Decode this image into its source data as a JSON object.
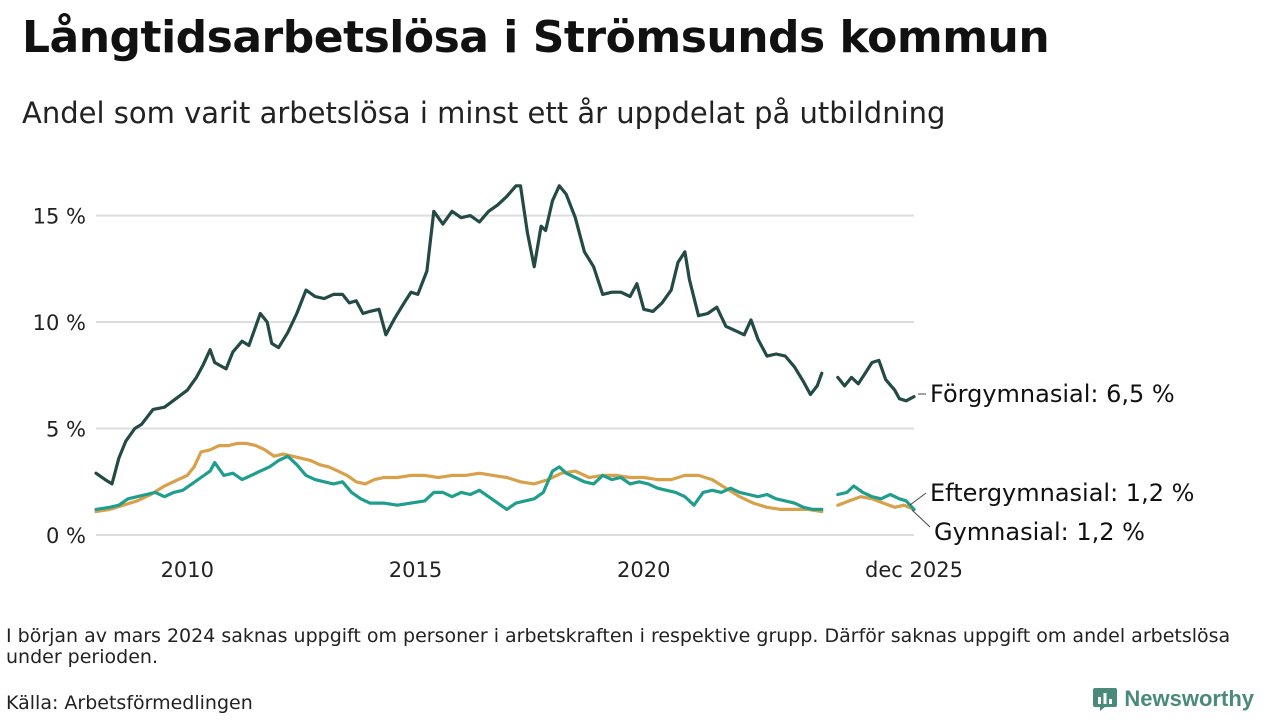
{
  "title": "Långtidsarbetslösa i Strömsunds kommun",
  "subtitle": "Andel som varit arbetslösa i minst ett år uppdelat på utbildning",
  "note": "I början av mars 2024 saknas uppgift om personer i arbetskraften i respektive grupp. Därför saknas uppgift om andel arbetslösa under perioden.",
  "source": "Källa: Arbetsförmedlingen",
  "brand": "Newsworthy",
  "colors": {
    "forgymnasial": "#234a44",
    "eftergymnasial": "#d9a04a",
    "gymnasial": "#1f9e8e",
    "grid": "#dddddd",
    "brand": "#4a8a7a"
  },
  "chart_data": {
    "type": "line",
    "title": "Långtidsarbetslösa i Strömsunds kommun",
    "xlabel": "",
    "ylabel": "",
    "ylim": [
      0,
      17
    ],
    "xlim": [
      2008.0,
      2025.92
    ],
    "y_ticks": [
      {
        "value": 0,
        "label": "0 %"
      },
      {
        "value": 5,
        "label": "5 %"
      },
      {
        "value": 10,
        "label": "10 %"
      },
      {
        "value": 15,
        "label": "15 %"
      }
    ],
    "x_ticks": [
      {
        "value": 2010,
        "label": "2010"
      },
      {
        "value": 2015,
        "label": "2015"
      },
      {
        "value": 2020,
        "label": "2020"
      },
      {
        "value": 2025.92,
        "label": "dec 2025"
      }
    ],
    "grid": true,
    "gap": [
      2023.9,
      2024.25
    ],
    "series": [
      {
        "name": "Förgymnasial",
        "label": "Förgymnasial: 6,5 %",
        "color_key": "forgymnasial",
        "points": [
          [
            2008.0,
            2.9
          ],
          [
            2008.2,
            2.6
          ],
          [
            2008.35,
            2.4
          ],
          [
            2008.5,
            3.6
          ],
          [
            2008.65,
            4.4
          ],
          [
            2008.85,
            5.0
          ],
          [
            2009.0,
            5.2
          ],
          [
            2009.25,
            5.9
          ],
          [
            2009.5,
            6.0
          ],
          [
            2009.75,
            6.4
          ],
          [
            2010.0,
            6.8
          ],
          [
            2010.2,
            7.4
          ],
          [
            2010.35,
            8.0
          ],
          [
            2010.5,
            8.7
          ],
          [
            2010.6,
            8.1
          ],
          [
            2010.85,
            7.8
          ],
          [
            2011.0,
            8.6
          ],
          [
            2011.2,
            9.1
          ],
          [
            2011.35,
            8.9
          ],
          [
            2011.6,
            10.4
          ],
          [
            2011.75,
            10.0
          ],
          [
            2011.85,
            9.0
          ],
          [
            2012.0,
            8.8
          ],
          [
            2012.2,
            9.5
          ],
          [
            2012.4,
            10.4
          ],
          [
            2012.6,
            11.5
          ],
          [
            2012.8,
            11.2
          ],
          [
            2013.0,
            11.1
          ],
          [
            2013.2,
            11.3
          ],
          [
            2013.4,
            11.3
          ],
          [
            2013.55,
            10.9
          ],
          [
            2013.7,
            11.0
          ],
          [
            2013.85,
            10.4
          ],
          [
            2014.0,
            10.5
          ],
          [
            2014.2,
            10.6
          ],
          [
            2014.35,
            9.4
          ],
          [
            2014.55,
            10.2
          ],
          [
            2014.75,
            10.9
          ],
          [
            2014.9,
            11.4
          ],
          [
            2015.05,
            11.3
          ],
          [
            2015.25,
            12.4
          ],
          [
            2015.4,
            15.2
          ],
          [
            2015.6,
            14.6
          ],
          [
            2015.8,
            15.2
          ],
          [
            2016.0,
            14.9
          ],
          [
            2016.2,
            15.0
          ],
          [
            2016.4,
            14.7
          ],
          [
            2016.6,
            15.2
          ],
          [
            2016.8,
            15.5
          ],
          [
            2017.0,
            15.9
          ],
          [
            2017.2,
            16.4
          ],
          [
            2017.3,
            16.4
          ],
          [
            2017.45,
            14.2
          ],
          [
            2017.6,
            12.6
          ],
          [
            2017.75,
            14.5
          ],
          [
            2017.85,
            14.3
          ],
          [
            2018.0,
            15.7
          ],
          [
            2018.15,
            16.4
          ],
          [
            2018.3,
            16.0
          ],
          [
            2018.5,
            14.9
          ],
          [
            2018.7,
            13.3
          ],
          [
            2018.9,
            12.6
          ],
          [
            2019.1,
            11.3
          ],
          [
            2019.3,
            11.4
          ],
          [
            2019.5,
            11.4
          ],
          [
            2019.7,
            11.2
          ],
          [
            2019.85,
            11.8
          ],
          [
            2020.0,
            10.6
          ],
          [
            2020.2,
            10.5
          ],
          [
            2020.4,
            10.9
          ],
          [
            2020.6,
            11.5
          ],
          [
            2020.75,
            12.8
          ],
          [
            2020.9,
            13.3
          ],
          [
            2021.0,
            12.0
          ],
          [
            2021.2,
            10.3
          ],
          [
            2021.4,
            10.4
          ],
          [
            2021.6,
            10.7
          ],
          [
            2021.8,
            9.8
          ],
          [
            2022.0,
            9.6
          ],
          [
            2022.2,
            9.4
          ],
          [
            2022.35,
            10.1
          ],
          [
            2022.5,
            9.2
          ],
          [
            2022.7,
            8.4
          ],
          [
            2022.9,
            8.5
          ],
          [
            2023.1,
            8.4
          ],
          [
            2023.3,
            7.9
          ],
          [
            2023.5,
            7.2
          ],
          [
            2023.65,
            6.6
          ],
          [
            2023.8,
            7.0
          ],
          [
            2023.9,
            7.6
          ],
          [
            2024.25,
            7.4
          ],
          [
            2024.4,
            7.0
          ],
          [
            2024.55,
            7.4
          ],
          [
            2024.7,
            7.1
          ],
          [
            2024.85,
            7.6
          ],
          [
            2025.0,
            8.1
          ],
          [
            2025.15,
            8.2
          ],
          [
            2025.3,
            7.3
          ],
          [
            2025.5,
            6.8
          ],
          [
            2025.6,
            6.4
          ],
          [
            2025.75,
            6.3
          ],
          [
            2025.92,
            6.5
          ]
        ]
      },
      {
        "name": "Eftergymnasial",
        "label": "Eftergymnasial: 1,2 %",
        "color_key": "eftergymnasial",
        "points": [
          [
            2008.0,
            1.1
          ],
          [
            2008.3,
            1.2
          ],
          [
            2008.6,
            1.4
          ],
          [
            2008.9,
            1.6
          ],
          [
            2009.2,
            1.9
          ],
          [
            2009.5,
            2.3
          ],
          [
            2009.8,
            2.6
          ],
          [
            2010.0,
            2.8
          ],
          [
            2010.15,
            3.2
          ],
          [
            2010.3,
            3.9
          ],
          [
            2010.5,
            4.0
          ],
          [
            2010.7,
            4.2
          ],
          [
            2010.9,
            4.2
          ],
          [
            2011.1,
            4.3
          ],
          [
            2011.3,
            4.3
          ],
          [
            2011.5,
            4.2
          ],
          [
            2011.7,
            4.0
          ],
          [
            2011.9,
            3.7
          ],
          [
            2012.1,
            3.8
          ],
          [
            2012.3,
            3.7
          ],
          [
            2012.5,
            3.6
          ],
          [
            2012.7,
            3.5
          ],
          [
            2012.9,
            3.3
          ],
          [
            2013.1,
            3.2
          ],
          [
            2013.3,
            3.0
          ],
          [
            2013.5,
            2.8
          ],
          [
            2013.7,
            2.5
          ],
          [
            2013.9,
            2.4
          ],
          [
            2014.1,
            2.6
          ],
          [
            2014.3,
            2.7
          ],
          [
            2014.6,
            2.7
          ],
          [
            2014.9,
            2.8
          ],
          [
            2015.2,
            2.8
          ],
          [
            2015.5,
            2.7
          ],
          [
            2015.8,
            2.8
          ],
          [
            2016.1,
            2.8
          ],
          [
            2016.4,
            2.9
          ],
          [
            2016.7,
            2.8
          ],
          [
            2017.0,
            2.7
          ],
          [
            2017.3,
            2.5
          ],
          [
            2017.6,
            2.4
          ],
          [
            2017.9,
            2.6
          ],
          [
            2018.2,
            2.9
          ],
          [
            2018.5,
            3.0
          ],
          [
            2018.8,
            2.7
          ],
          [
            2019.1,
            2.8
          ],
          [
            2019.4,
            2.8
          ],
          [
            2019.7,
            2.7
          ],
          [
            2020.0,
            2.7
          ],
          [
            2020.3,
            2.6
          ],
          [
            2020.6,
            2.6
          ],
          [
            2020.9,
            2.8
          ],
          [
            2021.2,
            2.8
          ],
          [
            2021.5,
            2.6
          ],
          [
            2021.8,
            2.2
          ],
          [
            2022.1,
            1.8
          ],
          [
            2022.4,
            1.5
          ],
          [
            2022.7,
            1.3
          ],
          [
            2023.0,
            1.2
          ],
          [
            2023.3,
            1.2
          ],
          [
            2023.6,
            1.2
          ],
          [
            2023.9,
            1.1
          ],
          [
            2024.25,
            1.4
          ],
          [
            2024.5,
            1.6
          ],
          [
            2024.75,
            1.8
          ],
          [
            2025.0,
            1.7
          ],
          [
            2025.25,
            1.5
          ],
          [
            2025.5,
            1.3
          ],
          [
            2025.7,
            1.4
          ],
          [
            2025.92,
            1.2
          ]
        ]
      },
      {
        "name": "Gymnasial",
        "label": "Gymnasial: 1,2 %",
        "color_key": "gymnasial",
        "points": [
          [
            2008.0,
            1.2
          ],
          [
            2008.3,
            1.3
          ],
          [
            2008.5,
            1.4
          ],
          [
            2008.7,
            1.7
          ],
          [
            2008.9,
            1.8
          ],
          [
            2009.1,
            1.9
          ],
          [
            2009.3,
            2.0
          ],
          [
            2009.5,
            1.8
          ],
          [
            2009.7,
            2.0
          ],
          [
            2009.9,
            2.1
          ],
          [
            2010.1,
            2.4
          ],
          [
            2010.3,
            2.7
          ],
          [
            2010.5,
            3.0
          ],
          [
            2010.6,
            3.4
          ],
          [
            2010.8,
            2.8
          ],
          [
            2011.0,
            2.9
          ],
          [
            2011.2,
            2.6
          ],
          [
            2011.4,
            2.8
          ],
          [
            2011.6,
            3.0
          ],
          [
            2011.8,
            3.2
          ],
          [
            2012.0,
            3.5
          ],
          [
            2012.2,
            3.7
          ],
          [
            2012.4,
            3.3
          ],
          [
            2012.6,
            2.8
          ],
          [
            2012.8,
            2.6
          ],
          [
            2013.0,
            2.5
          ],
          [
            2013.2,
            2.4
          ],
          [
            2013.4,
            2.5
          ],
          [
            2013.6,
            2.0
          ],
          [
            2013.8,
            1.7
          ],
          [
            2014.0,
            1.5
          ],
          [
            2014.3,
            1.5
          ],
          [
            2014.6,
            1.4
          ],
          [
            2014.9,
            1.5
          ],
          [
            2015.2,
            1.6
          ],
          [
            2015.4,
            2.0
          ],
          [
            2015.6,
            2.0
          ],
          [
            2015.8,
            1.8
          ],
          [
            2016.0,
            2.0
          ],
          [
            2016.2,
            1.9
          ],
          [
            2016.4,
            2.1
          ],
          [
            2016.6,
            1.8
          ],
          [
            2016.8,
            1.5
          ],
          [
            2017.0,
            1.2
          ],
          [
            2017.2,
            1.5
          ],
          [
            2017.4,
            1.6
          ],
          [
            2017.6,
            1.7
          ],
          [
            2017.8,
            2.0
          ],
          [
            2018.0,
            3.0
          ],
          [
            2018.15,
            3.2
          ],
          [
            2018.3,
            2.9
          ],
          [
            2018.5,
            2.7
          ],
          [
            2018.7,
            2.5
          ],
          [
            2018.9,
            2.4
          ],
          [
            2019.1,
            2.8
          ],
          [
            2019.3,
            2.6
          ],
          [
            2019.5,
            2.7
          ],
          [
            2019.7,
            2.4
          ],
          [
            2019.9,
            2.5
          ],
          [
            2020.1,
            2.4
          ],
          [
            2020.3,
            2.2
          ],
          [
            2020.5,
            2.1
          ],
          [
            2020.7,
            2.0
          ],
          [
            2020.9,
            1.8
          ],
          [
            2021.1,
            1.4
          ],
          [
            2021.3,
            2.0
          ],
          [
            2021.5,
            2.1
          ],
          [
            2021.7,
            2.0
          ],
          [
            2021.9,
            2.2
          ],
          [
            2022.1,
            2.0
          ],
          [
            2022.3,
            1.9
          ],
          [
            2022.5,
            1.8
          ],
          [
            2022.7,
            1.9
          ],
          [
            2022.9,
            1.7
          ],
          [
            2023.1,
            1.6
          ],
          [
            2023.3,
            1.5
          ],
          [
            2023.5,
            1.3
          ],
          [
            2023.7,
            1.2
          ],
          [
            2023.9,
            1.2
          ],
          [
            2024.25,
            1.9
          ],
          [
            2024.45,
            2.0
          ],
          [
            2024.6,
            2.3
          ],
          [
            2024.8,
            2.0
          ],
          [
            2025.0,
            1.8
          ],
          [
            2025.2,
            1.7
          ],
          [
            2025.4,
            1.9
          ],
          [
            2025.6,
            1.7
          ],
          [
            2025.75,
            1.6
          ],
          [
            2025.92,
            1.2
          ]
        ]
      }
    ]
  }
}
